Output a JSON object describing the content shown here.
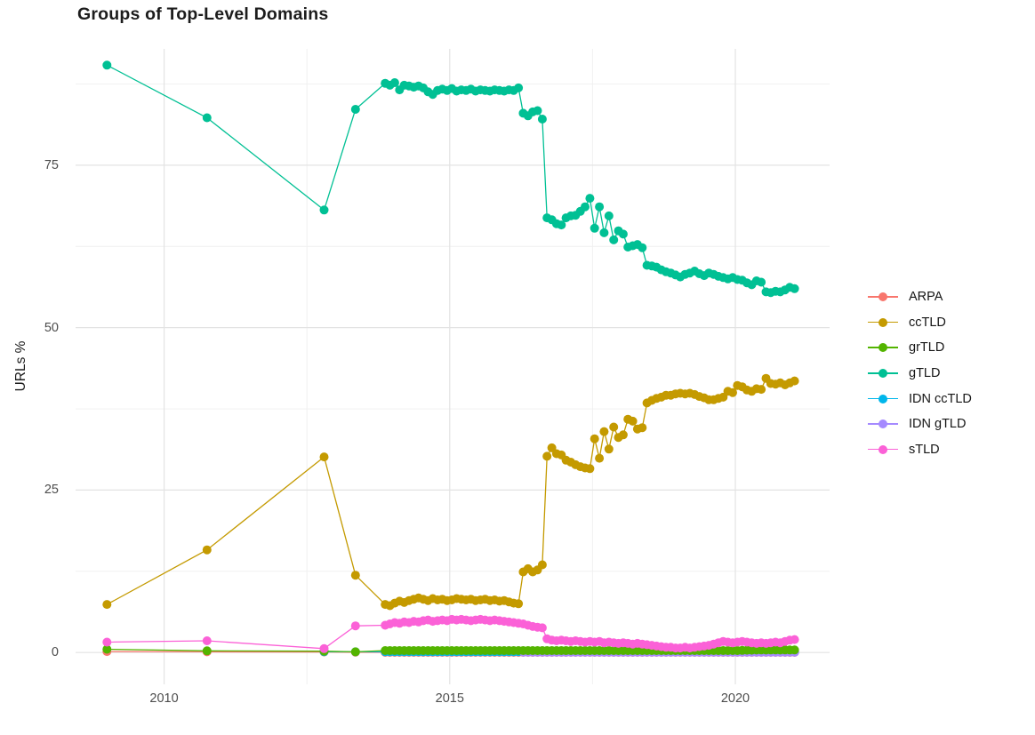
{
  "chart_data": {
    "type": "line",
    "title": "Groups of Top-Level Domains",
    "xlabel": "",
    "ylabel": "URLs %",
    "legend_position": "right",
    "grid": true,
    "xlim": [
      2008.45,
      2021.65
    ],
    "ylim": [
      -4.9,
      92.9
    ],
    "x_ticks": [
      2010,
      2015,
      2020
    ],
    "x_tick_labels": [
      "2010",
      "2015",
      "2020"
    ],
    "x_minor_ticks": [
      2012.5,
      2017.5
    ],
    "y_ticks": [
      0,
      25,
      50,
      75
    ],
    "y_tick_labels": [
      "0",
      "25",
      "50",
      "75"
    ],
    "y_minor_ticks": [
      12.5,
      37.5,
      62.5,
      87.5
    ],
    "grid_major_color": "#e3e3e3",
    "grid_minor_color": "#efefef",
    "draw_order": [
      "ARPA",
      "IDN ccTLD",
      "IDN gTLD",
      "grTLD",
      "ccTLD",
      "gTLD",
      "sTLD"
    ],
    "series": [
      {
        "name": "ARPA",
        "color": "#F8766D",
        "segments": [
          {
            "points": [
              [
                2009.0,
                0.15
              ],
              [
                2010.75,
                0.1
              ],
              [
                2012.8,
                0.08
              ],
              [
                2013.35,
                0.05
              ]
            ]
          },
          {
            "start": 2013.87,
            "step": 0.08333,
            "n": 87,
            "value": 0.03
          }
        ]
      },
      {
        "name": "ccTLD",
        "color": "#C49A00",
        "segments": [
          {
            "points": [
              [
                2009.0,
                7.4
              ],
              [
                2010.75,
                15.8
              ],
              [
                2012.8,
                30.1
              ],
              [
                2013.35,
                11.9
              ]
            ]
          },
          {
            "start": 2013.87,
            "step": 0.08333,
            "values": [
              7.4,
              7.2,
              7.6,
              7.9,
              7.7,
              8.0,
              8.2,
              8.4,
              8.2,
              8.0,
              8.3,
              8.1,
              8.2,
              8.0,
              8.1,
              8.3,
              8.2,
              8.1,
              8.2,
              8.0,
              8.1,
              8.2,
              8.0,
              8.1,
              7.9,
              8.0,
              7.8,
              7.6,
              7.5,
              12.4,
              12.9,
              12.4,
              12.7,
              13.5,
              30.2,
              31.5,
              30.6,
              30.4,
              29.6,
              29.3,
              28.9,
              28.6,
              28.4,
              28.3,
              32.9,
              29.9,
              34.0,
              31.3,
              34.7,
              33.1,
              33.5,
              35.9,
              35.6,
              34.4,
              34.6,
              38.4,
              38.8,
              39.1,
              39.3,
              39.6,
              39.6,
              39.8,
              39.9,
              39.8,
              39.9,
              39.7,
              39.4,
              39.2,
              38.9,
              38.9,
              39.1,
              39.3,
              40.2,
              40.0,
              41.1,
              40.9,
              40.4,
              40.2,
              40.6,
              40.5,
              42.2,
              41.4,
              41.3,
              41.5,
              41.2,
              41.5,
              41.8
            ]
          }
        ]
      },
      {
        "name": "grTLD",
        "color": "#53B400",
        "segments": [
          {
            "points": [
              [
                2009.0,
                0.5
              ],
              [
                2010.75,
                0.25
              ],
              [
                2012.8,
                0.2
              ],
              [
                2013.35,
                0.1
              ]
            ]
          },
          {
            "start": 2013.87,
            "step": 0.08333,
            "n": 75,
            "value": 0.3
          },
          {
            "start": 2020.12,
            "step": 0.08333,
            "values": [
              0.32,
              0.35,
              0.35,
              0.38,
              0.4,
              0.38,
              0.4,
              0.4,
              0.38,
              0.4,
              0.4,
              0.4
            ]
          }
        ]
      },
      {
        "name": "gTLD",
        "color": "#00C094",
        "segments": [
          {
            "points": [
              [
                2009.0,
                90.4
              ],
              [
                2010.75,
                82.3
              ],
              [
                2012.8,
                68.1
              ],
              [
                2013.35,
                83.6
              ]
            ]
          },
          {
            "start": 2013.87,
            "step": 0.08333,
            "values": [
              87.6,
              87.3,
              87.7,
              86.6,
              87.3,
              87.2,
              87.0,
              87.2,
              86.9,
              86.3,
              85.9,
              86.5,
              86.7,
              86.5,
              86.8,
              86.4,
              86.6,
              86.5,
              86.7,
              86.4,
              86.6,
              86.5,
              86.4,
              86.6,
              86.5,
              86.4,
              86.6,
              86.5,
              86.9,
              83.0,
              82.6,
              83.2,
              83.4,
              82.1,
              66.9,
              66.6,
              66.0,
              65.8,
              66.9,
              67.2,
              67.3,
              67.9,
              68.6,
              69.9,
              65.3,
              68.6,
              64.6,
              67.2,
              63.5,
              64.9,
              64.4,
              62.4,
              62.6,
              62.8,
              62.3,
              59.6,
              59.5,
              59.3,
              58.9,
              58.6,
              58.4,
              58.1,
              57.8,
              58.2,
              58.4,
              58.7,
              58.3,
              58.0,
              58.4,
              58.2,
              57.9,
              57.7,
              57.5,
              57.7,
              57.4,
              57.3,
              56.9,
              56.6,
              57.2,
              57.0,
              55.5,
              55.4,
              55.6,
              55.5,
              55.8,
              56.2,
              56.0
            ]
          }
        ]
      },
      {
        "name": "IDN ccTLD",
        "color": "#00B6EB",
        "segments": [
          {
            "points": [
              [
                2012.8,
                0.12
              ],
              [
                2013.35,
                0.1
              ]
            ]
          },
          {
            "start": 2013.87,
            "step": 0.08333,
            "n": 87,
            "value": 0.12
          }
        ]
      },
      {
        "name": "IDN gTLD",
        "color": "#A58AFF",
        "segments": [
          {
            "start": 2016.29,
            "step": 0.08333,
            "n": 58,
            "value": 0.05
          }
        ]
      },
      {
        "name": "sTLD",
        "color": "#FB61D7",
        "segments": [
          {
            "points": [
              [
                2009.0,
                1.6
              ],
              [
                2010.75,
                1.8
              ],
              [
                2012.8,
                0.6
              ],
              [
                2013.35,
                4.1
              ]
            ]
          },
          {
            "start": 2013.87,
            "step": 0.08333,
            "values": [
              4.2,
              4.4,
              4.6,
              4.5,
              4.7,
              4.6,
              4.8,
              4.7,
              4.9,
              5.0,
              4.8,
              4.9,
              5.0,
              4.9,
              5.1,
              5.0,
              5.1,
              5.0,
              4.9,
              5.0,
              5.1,
              5.0,
              4.9,
              5.0,
              4.9,
              4.8,
              4.7,
              4.6,
              4.5,
              4.4,
              4.2,
              4.0,
              3.9,
              3.8,
              2.1,
              1.9,
              1.8,
              1.9,
              1.8,
              1.7,
              1.8,
              1.7,
              1.6,
              1.7,
              1.6,
              1.7,
              1.5,
              1.6,
              1.5,
              1.4,
              1.5,
              1.4,
              1.3,
              1.4,
              1.3,
              1.2,
              1.1,
              1.0,
              0.9,
              0.8,
              0.8,
              0.7,
              0.7,
              0.8,
              0.7,
              0.8,
              0.9,
              1.0,
              1.1,
              1.3,
              1.5,
              1.7,
              1.6,
              1.5,
              1.6,
              1.7,
              1.6,
              1.5,
              1.4,
              1.5,
              1.4,
              1.5,
              1.6,
              1.5,
              1.7,
              1.9,
              2.0
            ]
          }
        ]
      }
    ]
  }
}
